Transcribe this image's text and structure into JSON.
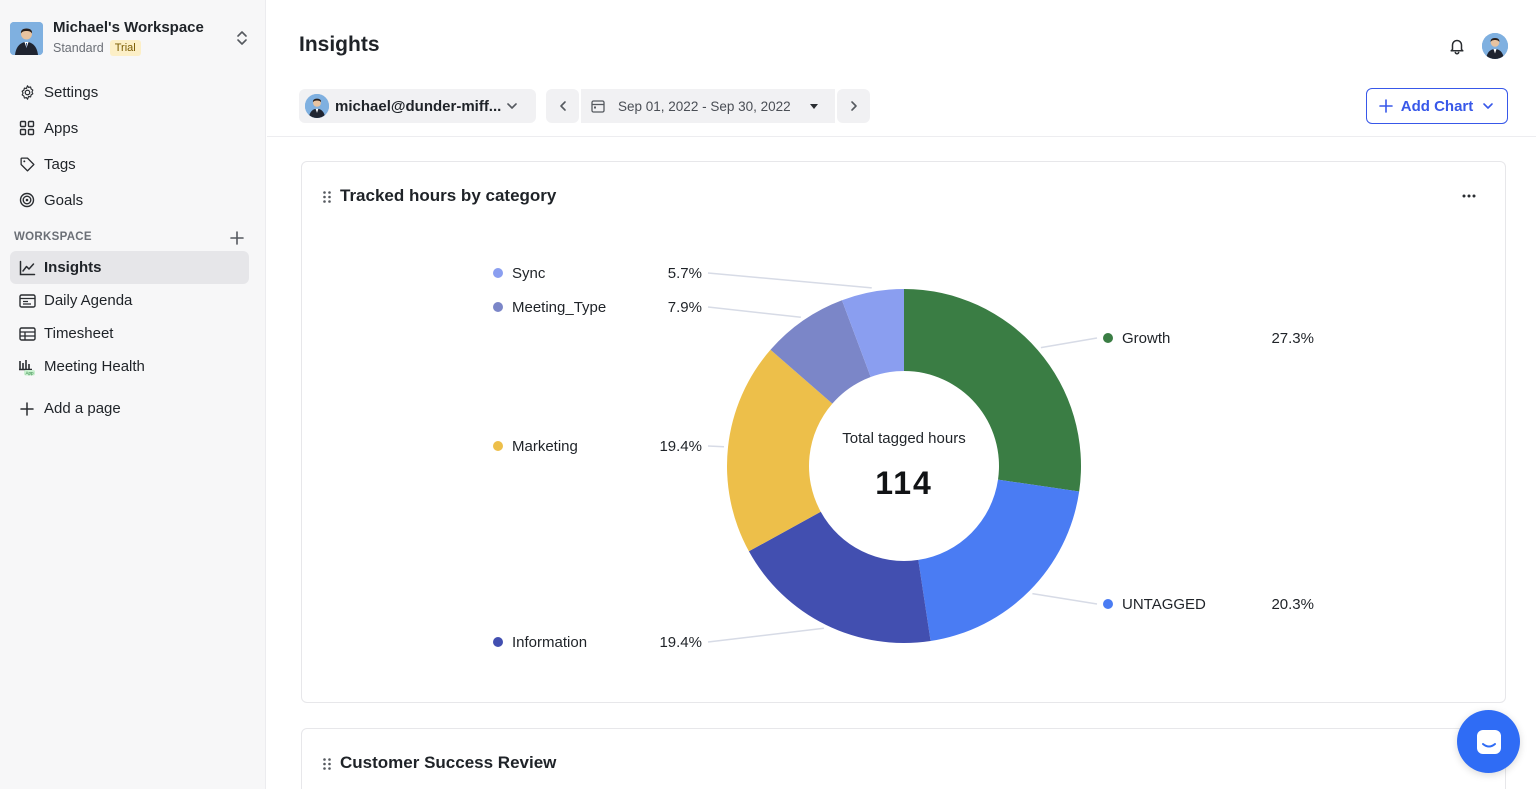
{
  "sidebar": {
    "workspace_name": "Michael's Workspace",
    "plan": "Standard",
    "trial_badge": "Trial",
    "top_items": [
      {
        "label": "Settings",
        "icon": "gear-icon"
      },
      {
        "label": "Apps",
        "icon": "grid-icon"
      },
      {
        "label": "Tags",
        "icon": "tag-icon"
      },
      {
        "label": "Goals",
        "icon": "target-icon"
      }
    ],
    "section_label": "WORKSPACE",
    "workspace_items": [
      {
        "label": "Insights",
        "icon": "chart-line-icon",
        "active": true
      },
      {
        "label": "Daily Agenda",
        "icon": "agenda-icon"
      },
      {
        "label": "Timesheet",
        "icon": "table-icon"
      },
      {
        "label": "Meeting Health",
        "icon": "bar-chart-app-icon",
        "badge": "App"
      }
    ],
    "add_page": "Add a page"
  },
  "header": {
    "title": "Insights"
  },
  "toolbar": {
    "user_email": "michael@dunder-miff...",
    "date_range": "Sep 01, 2022 - Sep 30, 2022",
    "add_chart": "Add Chart"
  },
  "card1": {
    "title": "Tracked hours by category"
  },
  "card2": {
    "title": "Customer Success Review"
  },
  "chart_data": {
    "type": "pie",
    "title": "Tracked hours by category",
    "center_label": "Total tagged hours",
    "center_value": "114",
    "slices": [
      {
        "name": "Growth",
        "percent": 27.3,
        "label": "27.3%",
        "color": "#3a7d44"
      },
      {
        "name": "UNTAGGED",
        "percent": 20.3,
        "label": "20.3%",
        "color": "#4a7cf3"
      },
      {
        "name": "Information",
        "percent": 19.4,
        "label": "19.4%",
        "color": "#424fb0"
      },
      {
        "name": "Marketing",
        "percent": 19.4,
        "label": "19.4%",
        "color": "#edbf4a"
      },
      {
        "name": "Meeting_Type",
        "percent": 7.9,
        "label": "7.9%",
        "color": "#7b86c8"
      },
      {
        "name": "Sync",
        "percent": 5.7,
        "label": "5.7%",
        "color": "#8a9ef0"
      }
    ]
  }
}
